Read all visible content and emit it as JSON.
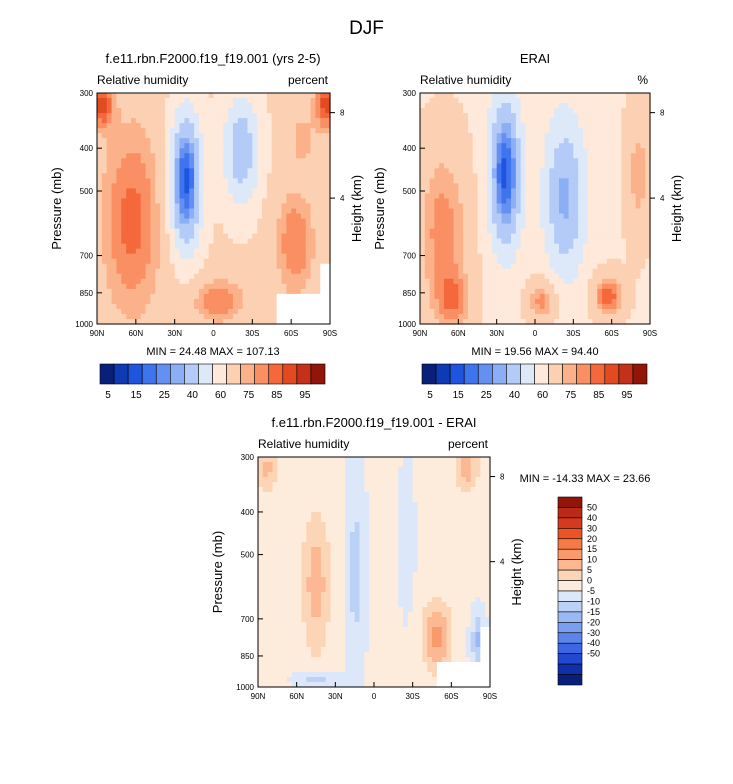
{
  "figure_title": "DJF",
  "palettes": {
    "absolute": [
      "#0a1f7a",
      "#0f3ab5",
      "#1f54de",
      "#3f74ef",
      "#6490f2",
      "#8caef4",
      "#b3cbf6",
      "#dde9f9",
      "#ffe9da",
      "#fcd0b3",
      "#fbb28b",
      "#f98f62",
      "#f4683c",
      "#e24b22",
      "#c5301a",
      "#911509"
    ],
    "difference": [
      "#911509",
      "#ba2a17",
      "#d53a1e",
      "#ec5427",
      "#f47a46",
      "#f89a6c",
      "#fbb892",
      "#fcd4b6",
      "#fdebdc",
      "#dce7fa",
      "#bcd1f6",
      "#9ab8f3",
      "#7a9ef0",
      "#5b84ec",
      "#3c66e3",
      "#2049cf",
      "#0f2fab",
      "#0a1f7a"
    ]
  },
  "chart_data": [
    {
      "type": "contour",
      "id": "model",
      "title": "f.e11.rbn.F2000.f19_f19.001 (yrs 2-5)",
      "left_label": "Relative humidity",
      "right_label": "percent",
      "xlabel": "",
      "ylabel": "Pressure (mb)",
      "ylabel_right": "Height (km)",
      "x_ticks": [
        "90N",
        "60N",
        "30N",
        "0",
        "30S",
        "60S",
        "90S"
      ],
      "y_ticks": [
        "300",
        "400",
        "500",
        "700",
        "850",
        "1000"
      ],
      "height_ticks": [
        "8",
        "4"
      ],
      "stats_text": "MIN =  24.48   MAX = 107.13",
      "min": 24.48,
      "max": 107.13,
      "colorbar": {
        "labels": [
          "5",
          "15",
          "25",
          "40",
          "60",
          "75",
          "85",
          "95"
        ]
      }
    },
    {
      "type": "contour",
      "id": "obs",
      "title": "ERAI",
      "left_label": "Relative humidity",
      "right_label": "%",
      "xlabel": "",
      "ylabel": "Pressure (mb)",
      "ylabel_right": "Height (km)",
      "x_ticks": [
        "90N",
        "60N",
        "30N",
        "0",
        "30S",
        "60S",
        "90S"
      ],
      "y_ticks": [
        "300",
        "400",
        "500",
        "700",
        "850",
        "1000"
      ],
      "height_ticks": [
        "8",
        "4"
      ],
      "stats_text": "MIN =  19.56   MAX =  94.40",
      "min": 19.56,
      "max": 94.4,
      "colorbar": {
        "labels": [
          "5",
          "15",
          "25",
          "40",
          "60",
          "75",
          "85",
          "95"
        ]
      }
    },
    {
      "type": "contour",
      "id": "diff",
      "title": "f.e11.rbn.F2000.f19_f19.001 - ERAI",
      "left_label": "Relative humidity",
      "right_label": "percent",
      "xlabel": "",
      "ylabel": "Pressure (mb)",
      "ylabel_right": "Height (km)",
      "x_ticks": [
        "90N",
        "60N",
        "30N",
        "0",
        "30S",
        "60S",
        "90S"
      ],
      "y_ticks": [
        "300",
        "400",
        "500",
        "700",
        "850",
        "1000"
      ],
      "height_ticks": [
        "8",
        "4"
      ],
      "stats_text": "MIN = -14.33   MAX =  23.66",
      "min": -14.33,
      "max": 23.66,
      "colorbar": {
        "labels": [
          "50",
          "40",
          "30",
          "20",
          "15",
          "10",
          "5",
          "0",
          "-5",
          "-10",
          "-15",
          "-20",
          "-30",
          "-40",
          "-50"
        ]
      }
    }
  ]
}
